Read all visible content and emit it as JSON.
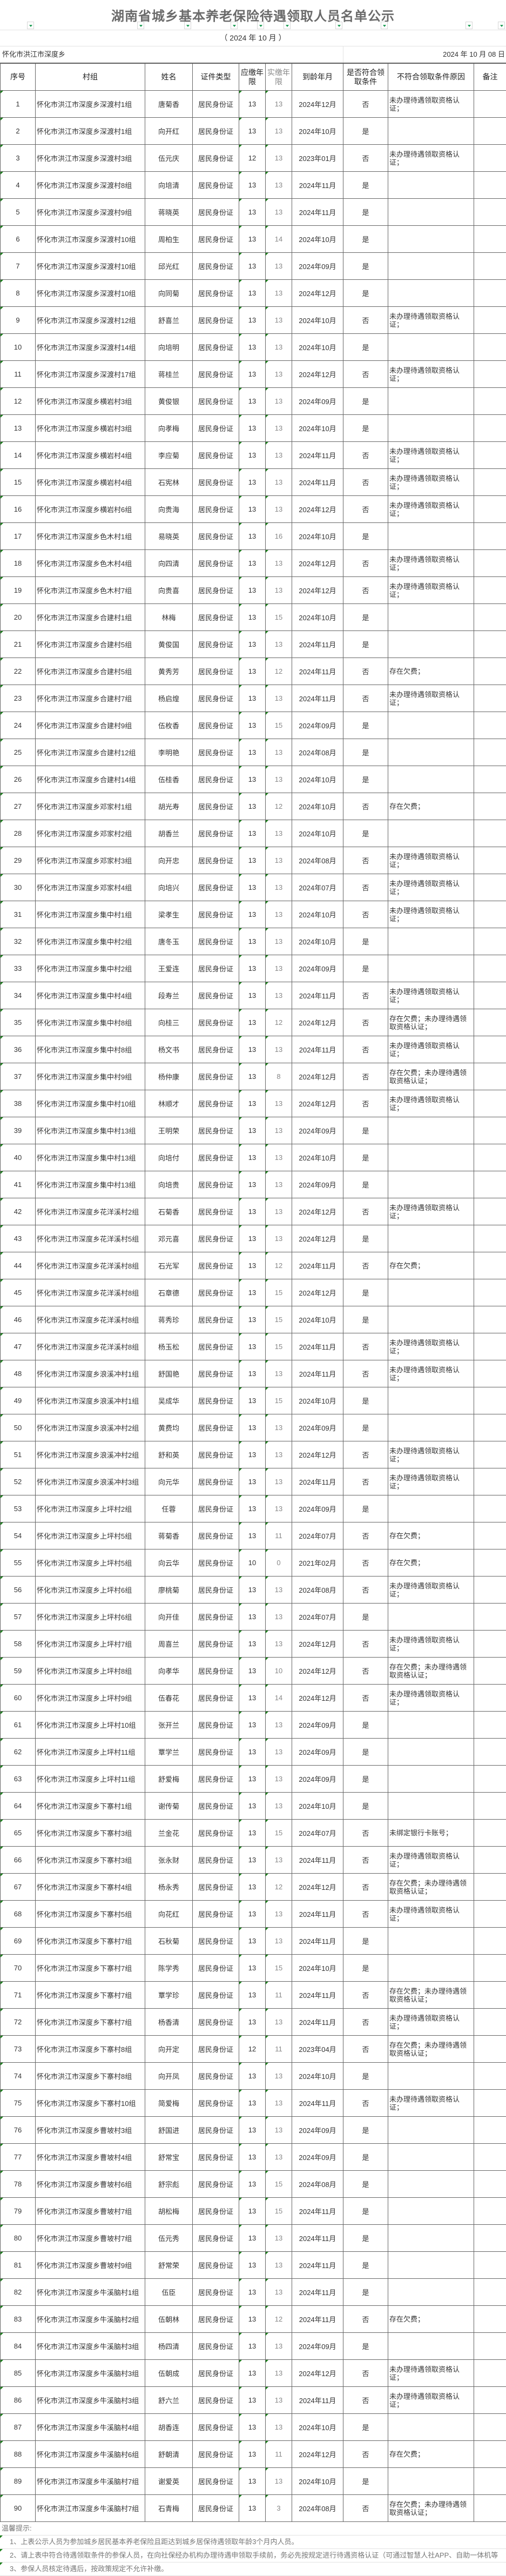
{
  "title": "湖南省城乡基本养老保险待遇领取人员名单公示",
  "period": "（ 2024 年 10 月 ）",
  "region": "怀化市洪江市深度乡",
  "date": "2024 年 10 月 08 日",
  "colors": {
    "filter_arrow": "#1f9d55",
    "grid": "#666666",
    "title": "#6a6a6a"
  },
  "columns": [
    "序号",
    "村组",
    "姓名",
    "证件类型",
    "应缴年限",
    "实缴年限",
    "到龄年月",
    "是否符合领取条件",
    "不符合领取条件原因",
    "备注"
  ],
  "rows": [
    [
      "1",
      "怀化市洪江市深度乡深渡村1组",
      "唐菊香",
      "居民身份证",
      "13",
      "13",
      "2024年12月",
      "否",
      "未办理待遇领取资格认证；",
      ""
    ],
    [
      "2",
      "怀化市洪江市深度乡深渡村1组",
      "向开红",
      "居民身份证",
      "13",
      "13",
      "2024年10月",
      "是",
      "",
      ""
    ],
    [
      "3",
      "怀化市洪江市深度乡深渡村3组",
      "伍元庆",
      "居民身份证",
      "12",
      "13",
      "2023年01月",
      "否",
      "未办理待遇领取资格认证；",
      ""
    ],
    [
      "4",
      "怀化市洪江市深度乡深渡村8组",
      "向培清",
      "居民身份证",
      "13",
      "13",
      "2024年11月",
      "是",
      "",
      ""
    ],
    [
      "5",
      "怀化市洪江市深度乡深渡村9组",
      "蒋晓英",
      "居民身份证",
      "13",
      "13",
      "2024年11月",
      "是",
      "",
      ""
    ],
    [
      "6",
      "怀化市洪江市深度乡深渡村10组",
      "周柏生",
      "居民身份证",
      "13",
      "14",
      "2024年10月",
      "是",
      "",
      ""
    ],
    [
      "7",
      "怀化市洪江市深度乡深渡村10组",
      "邱光红",
      "居民身份证",
      "13",
      "13",
      "2024年09月",
      "是",
      "",
      ""
    ],
    [
      "8",
      "怀化市洪江市深度乡深渡村10组",
      "向同菊",
      "居民身份证",
      "13",
      "13",
      "2024年12月",
      "是",
      "",
      ""
    ],
    [
      "9",
      "怀化市洪江市深度乡深渡村12组",
      "舒喜兰",
      "居民身份证",
      "13",
      "13",
      "2024年10月",
      "否",
      "未办理待遇领取资格认证；",
      ""
    ],
    [
      "10",
      "怀化市洪江市深度乡深渡村14组",
      "向培明",
      "居民身份证",
      "13",
      "13",
      "2024年10月",
      "是",
      "",
      ""
    ],
    [
      "11",
      "怀化市洪江市深度乡深渡村17组",
      "蒋桂兰",
      "居民身份证",
      "13",
      "13",
      "2024年12月",
      "否",
      "未办理待遇领取资格认证；",
      ""
    ],
    [
      "12",
      "怀化市洪江市深度乡横岩村3组",
      "黄俊银",
      "居民身份证",
      "13",
      "13",
      "2024年09月",
      "是",
      "",
      ""
    ],
    [
      "13",
      "怀化市洪江市深度乡横岩村3组",
      "向孝梅",
      "居民身份证",
      "13",
      "13",
      "2024年10月",
      "是",
      "",
      ""
    ],
    [
      "14",
      "怀化市洪江市深度乡横岩村4组",
      "李应菊",
      "居民身份证",
      "13",
      "13",
      "2024年11月",
      "否",
      "未办理待遇领取资格认证；",
      ""
    ],
    [
      "15",
      "怀化市洪江市深度乡横岩村4组",
      "石宪林",
      "居民身份证",
      "13",
      "13",
      "2024年11月",
      "否",
      "未办理待遇领取资格认证；",
      ""
    ],
    [
      "16",
      "怀化市洪江市深度乡横岩村6组",
      "向贵海",
      "居民身份证",
      "13",
      "13",
      "2024年12月",
      "否",
      "未办理待遇领取资格认证；",
      ""
    ],
    [
      "17",
      "怀化市洪江市深度乡色木村1组",
      "易晓英",
      "居民身份证",
      "13",
      "16",
      "2024年10月",
      "是",
      "",
      ""
    ],
    [
      "18",
      "怀化市洪江市深度乡色木村4组",
      "向四清",
      "居民身份证",
      "13",
      "13",
      "2024年12月",
      "否",
      "未办理待遇领取资格认证；",
      ""
    ],
    [
      "19",
      "怀化市洪江市深度乡色木村7组",
      "向贵喜",
      "居民身份证",
      "13",
      "13",
      "2024年12月",
      "否",
      "未办理待遇领取资格认证；",
      ""
    ],
    [
      "20",
      "怀化市洪江市深度乡合建村1组",
      "林梅",
      "居民身份证",
      "13",
      "15",
      "2024年10月",
      "是",
      "",
      ""
    ],
    [
      "21",
      "怀化市洪江市深度乡合建村5组",
      "黄俊国",
      "居民身份证",
      "13",
      "13",
      "2024年11月",
      "是",
      "",
      ""
    ],
    [
      "22",
      "怀化市洪江市深度乡合建村5组",
      "黄秀芳",
      "居民身份证",
      "13",
      "12",
      "2024年11月",
      "否",
      "存在欠费；",
      ""
    ],
    [
      "23",
      "怀化市洪江市深度乡合建村7组",
      "杨启煌",
      "居民身份证",
      "13",
      "13",
      "2024年11月",
      "否",
      "未办理待遇领取资格认证；",
      ""
    ],
    [
      "24",
      "怀化市洪江市深度乡合建村9组",
      "伍枚香",
      "居民身份证",
      "13",
      "15",
      "2024年09月",
      "是",
      "",
      ""
    ],
    [
      "25",
      "怀化市洪江市深度乡合建村12组",
      "李明艳",
      "居民身份证",
      "13",
      "13",
      "2024年08月",
      "是",
      "",
      ""
    ],
    [
      "26",
      "怀化市洪江市深度乡合建村14组",
      "伍桂香",
      "居民身份证",
      "13",
      "13",
      "2024年10月",
      "是",
      "",
      ""
    ],
    [
      "27",
      "怀化市洪江市深度乡邓家村1组",
      "胡光寿",
      "居民身份证",
      "13",
      "12",
      "2024年10月",
      "否",
      "存在欠费；",
      ""
    ],
    [
      "28",
      "怀化市洪江市深度乡邓家村2组",
      "胡香兰",
      "居民身份证",
      "13",
      "13",
      "2024年10月",
      "是",
      "",
      ""
    ],
    [
      "29",
      "怀化市洪江市深度乡邓家村3组",
      "向开忠",
      "居民身份证",
      "13",
      "13",
      "2024年08月",
      "否",
      "未办理待遇领取资格认证；",
      ""
    ],
    [
      "30",
      "怀化市洪江市深度乡邓家村4组",
      "向培兴",
      "居民身份证",
      "13",
      "13",
      "2024年07月",
      "否",
      "未办理待遇领取资格认证；",
      ""
    ],
    [
      "31",
      "怀化市洪江市深度乡集中村1组",
      "梁孝生",
      "居民身份证",
      "13",
      "13",
      "2024年10月",
      "否",
      "未办理待遇领取资格认证；",
      ""
    ],
    [
      "32",
      "怀化市洪江市深度乡集中村2组",
      "唐冬玉",
      "居民身份证",
      "13",
      "13",
      "2024年10月",
      "是",
      "",
      ""
    ],
    [
      "33",
      "怀化市洪江市深度乡集中村2组",
      "王爱连",
      "居民身份证",
      "13",
      "13",
      "2024年09月",
      "是",
      "",
      ""
    ],
    [
      "34",
      "怀化市洪江市深度乡集中村4组",
      "段寿兰",
      "居民身份证",
      "13",
      "13",
      "2024年11月",
      "否",
      "未办理待遇领取资格认证；",
      ""
    ],
    [
      "35",
      "怀化市洪江市深度乡集中村8组",
      "向桂三",
      "居民身份证",
      "13",
      "12",
      "2024年12月",
      "否",
      "存在欠费；未办理待遇领取资格认证；",
      ""
    ],
    [
      "36",
      "怀化市洪江市深度乡集中村8组",
      "杨文书",
      "居民身份证",
      "13",
      "13",
      "2024年11月",
      "否",
      "未办理待遇领取资格认证；",
      ""
    ],
    [
      "37",
      "怀化市洪江市深度乡集中村9组",
      "杨仲康",
      "居民身份证",
      "13",
      "8",
      "2024年12月",
      "否",
      "存在欠费；未办理待遇领取资格认证；",
      ""
    ],
    [
      "38",
      "怀化市洪江市深度乡集中村10组",
      "林顺才",
      "居民身份证",
      "13",
      "13",
      "2024年12月",
      "否",
      "未办理待遇领取资格认证；",
      ""
    ],
    [
      "39",
      "怀化市洪江市深度乡集中村13组",
      "王明荣",
      "居民身份证",
      "13",
      "13",
      "2024年09月",
      "是",
      "",
      ""
    ],
    [
      "40",
      "怀化市洪江市深度乡集中村13组",
      "向培付",
      "居民身份证",
      "13",
      "13",
      "2024年10月",
      "是",
      "",
      ""
    ],
    [
      "41",
      "怀化市洪江市深度乡集中村13组",
      "向培贵",
      "居民身份证",
      "13",
      "13",
      "2024年09月",
      "是",
      "",
      ""
    ],
    [
      "42",
      "怀化市洪江市深度乡花洋溪村2组",
      "石菊香",
      "居民身份证",
      "13",
      "13",
      "2024年12月",
      "否",
      "未办理待遇领取资格认证；",
      ""
    ],
    [
      "43",
      "怀化市洪江市深度乡花洋溪村5组",
      "邓元喜",
      "居民身份证",
      "13",
      "13",
      "2024年12月",
      "是",
      "",
      ""
    ],
    [
      "44",
      "怀化市洪江市深度乡花洋溪村8组",
      "石光军",
      "居民身份证",
      "13",
      "12",
      "2024年11月",
      "否",
      "存在欠费；",
      ""
    ],
    [
      "45",
      "怀化市洪江市深度乡花洋溪村8组",
      "石章德",
      "居民身份证",
      "13",
      "15",
      "2024年12月",
      "是",
      "",
      ""
    ],
    [
      "46",
      "怀化市洪江市深度乡花洋溪村8组",
      "蒋秀珍",
      "居民身份证",
      "13",
      "15",
      "2024年10月",
      "是",
      "",
      ""
    ],
    [
      "47",
      "怀化市洪江市深度乡花洋溪村8组",
      "杨玉松",
      "居民身份证",
      "13",
      "15",
      "2024年11月",
      "否",
      "未办理待遇领取资格认证；",
      ""
    ],
    [
      "48",
      "怀化市洪江市深度乡浪溪冲村1组",
      "舒国艳",
      "居民身份证",
      "13",
      "13",
      "2024年11月",
      "否",
      "未办理待遇领取资格认证；",
      ""
    ],
    [
      "49",
      "怀化市洪江市深度乡浪溪冲村1组",
      "吴成华",
      "居民身份证",
      "13",
      "15",
      "2024年10月",
      "是",
      "",
      ""
    ],
    [
      "50",
      "怀化市洪江市深度乡浪溪冲村2组",
      "黄费均",
      "居民身份证",
      "13",
      "13",
      "2024年09月",
      "是",
      "",
      ""
    ],
    [
      "51",
      "怀化市洪江市深度乡浪溪冲村2组",
      "舒和英",
      "居民身份证",
      "13",
      "13",
      "2024年12月",
      "否",
      "未办理待遇领取资格认证；",
      ""
    ],
    [
      "52",
      "怀化市洪江市深度乡浪溪冲村3组",
      "向元华",
      "居民身份证",
      "13",
      "13",
      "2024年11月",
      "否",
      "未办理待遇领取资格认证；",
      ""
    ],
    [
      "53",
      "怀化市洪江市深度乡上坪村2组",
      "任蓉",
      "居民身份证",
      "13",
      "13",
      "2024年09月",
      "是",
      "",
      ""
    ],
    [
      "54",
      "怀化市洪江市深度乡上坪村5组",
      "蒋菊香",
      "居民身份证",
      "13",
      "11",
      "2024年07月",
      "否",
      "存在欠费；",
      ""
    ],
    [
      "55",
      "怀化市洪江市深度乡上坪村5组",
      "向云华",
      "居民身份证",
      "10",
      "0",
      "2021年02月",
      "否",
      "存在欠费；",
      ""
    ],
    [
      "56",
      "怀化市洪江市深度乡上坪村6组",
      "廖桃菊",
      "居民身份证",
      "13",
      "13",
      "2024年08月",
      "否",
      "未办理待遇领取资格认证；",
      ""
    ],
    [
      "57",
      "怀化市洪江市深度乡上坪村6组",
      "向开佳",
      "居民身份证",
      "13",
      "13",
      "2024年07月",
      "是",
      "",
      ""
    ],
    [
      "58",
      "怀化市洪江市深度乡上坪村7组",
      "周喜兰",
      "居民身份证",
      "13",
      "13",
      "2024年12月",
      "否",
      "未办理待遇领取资格认证；",
      ""
    ],
    [
      "59",
      "怀化市洪江市深度乡上坪村8组",
      "向孝华",
      "居民身份证",
      "13",
      "10",
      "2024年12月",
      "否",
      "存在欠费；未办理待遇领取资格认证；",
      ""
    ],
    [
      "60",
      "怀化市洪江市深度乡上坪村9组",
      "伍春花",
      "居民身份证",
      "13",
      "14",
      "2024年12月",
      "否",
      "未办理待遇领取资格认证；",
      ""
    ],
    [
      "61",
      "怀化市洪江市深度乡上坪村10组",
      "张开兰",
      "居民身份证",
      "13",
      "13",
      "2024年09月",
      "是",
      "",
      ""
    ],
    [
      "62",
      "怀化市洪江市深度乡上坪村11组",
      "覃学兰",
      "居民身份证",
      "13",
      "13",
      "2024年09月",
      "是",
      "",
      ""
    ],
    [
      "63",
      "怀化市洪江市深度乡上坪村11组",
      "舒爱梅",
      "居民身份证",
      "13",
      "13",
      "2024年09月",
      "是",
      "",
      ""
    ],
    [
      "64",
      "怀化市洪江市深度乡下寨村1组",
      "谢传菊",
      "居民身份证",
      "13",
      "13",
      "2024年10月",
      "是",
      "",
      ""
    ],
    [
      "65",
      "怀化市洪江市深度乡下寨村3组",
      "兰金花",
      "居民身份证",
      "13",
      "15",
      "2024年07月",
      "否",
      "未绑定银行卡账号；",
      ""
    ],
    [
      "66",
      "怀化市洪江市深度乡下寨村3组",
      "张永财",
      "居民身份证",
      "13",
      "13",
      "2024年11月",
      "否",
      "未办理待遇领取资格认证；",
      ""
    ],
    [
      "67",
      "怀化市洪江市深度乡下寨村4组",
      "杨永秀",
      "居民身份证",
      "13",
      "12",
      "2024年12月",
      "否",
      "存在欠费；未办理待遇领取资格认证；",
      ""
    ],
    [
      "68",
      "怀化市洪江市深度乡下寨村5组",
      "向花红",
      "居民身份证",
      "13",
      "13",
      "2024年11月",
      "否",
      "未办理待遇领取资格认证；",
      ""
    ],
    [
      "69",
      "怀化市洪江市深度乡下寨村7组",
      "石秋菊",
      "居民身份证",
      "13",
      "13",
      "2024年11月",
      "是",
      "",
      ""
    ],
    [
      "70",
      "怀化市洪江市深度乡下寨村7组",
      "陈学秀",
      "居民身份证",
      "13",
      "15",
      "2024年10月",
      "是",
      "",
      ""
    ],
    [
      "71",
      "怀化市洪江市深度乡下寨村7组",
      "覃学珍",
      "居民身份证",
      "13",
      "11",
      "2024年11月",
      "否",
      "存在欠费；未办理待遇领取资格认证；",
      ""
    ],
    [
      "72",
      "怀化市洪江市深度乡下寨村7组",
      "杨香清",
      "居民身份证",
      "13",
      "13",
      "2024年11月",
      "否",
      "未办理待遇领取资格认证；",
      ""
    ],
    [
      "73",
      "怀化市洪江市深度乡下寨村8组",
      "向开定",
      "居民身份证",
      "12",
      "11",
      "2023年04月",
      "否",
      "存在欠费；未办理待遇领取资格认证；",
      ""
    ],
    [
      "74",
      "怀化市洪江市深度乡下寨村8组",
      "向开凤",
      "居民身份证",
      "13",
      "13",
      "2024年10月",
      "是",
      "",
      ""
    ],
    [
      "75",
      "怀化市洪江市深度乡下寨村10组",
      "简爱梅",
      "居民身份证",
      "13",
      "13",
      "2024年11月",
      "否",
      "未办理待遇领取资格认证；",
      ""
    ],
    [
      "76",
      "怀化市洪江市深度乡曹坡村3组",
      "舒国进",
      "居民身份证",
      "13",
      "13",
      "2024年09月",
      "是",
      "",
      ""
    ],
    [
      "77",
      "怀化市洪江市深度乡曹坡村4组",
      "舒常宝",
      "居民身份证",
      "13",
      "13",
      "2024年09月",
      "是",
      "",
      ""
    ],
    [
      "78",
      "怀化市洪江市深度乡曹坡村6组",
      "舒宗彪",
      "居民身份证",
      "13",
      "15",
      "2024年08月",
      "是",
      "",
      ""
    ],
    [
      "79",
      "怀化市洪江市深度乡曹坡村7组",
      "胡松梅",
      "居民身份证",
      "13",
      "15",
      "2024年11月",
      "是",
      "",
      ""
    ],
    [
      "80",
      "怀化市洪江市深度乡曹坡村7组",
      "伍元秀",
      "居民身份证",
      "13",
      "13",
      "2024年11月",
      "是",
      "",
      ""
    ],
    [
      "81",
      "怀化市洪江市深度乡曹坡村9组",
      "舒常荣",
      "居民身份证",
      "13",
      "13",
      "2024年11月",
      "是",
      "",
      ""
    ],
    [
      "82",
      "怀化市洪江市深度乡牛溪脑村1组",
      "伍臣",
      "居民身份证",
      "13",
      "13",
      "2024年11月",
      "是",
      "",
      ""
    ],
    [
      "83",
      "怀化市洪江市深度乡牛溪脑村2组",
      "伍朝林",
      "居民身份证",
      "13",
      "12",
      "2024年11月",
      "否",
      "存在欠费；",
      ""
    ],
    [
      "84",
      "怀化市洪江市深度乡牛溪脑村3组",
      "杨四清",
      "居民身份证",
      "13",
      "13",
      "2024年09月",
      "是",
      "",
      ""
    ],
    [
      "85",
      "怀化市洪江市深度乡牛溪脑村3组",
      "伍朝成",
      "居民身份证",
      "13",
      "13",
      "2024年12月",
      "否",
      "未办理待遇领取资格认证；",
      ""
    ],
    [
      "86",
      "怀化市洪江市深度乡牛溪脑村3组",
      "舒六兰",
      "居民身份证",
      "13",
      "13",
      "2024年11月",
      "否",
      "未办理待遇领取资格认证；",
      ""
    ],
    [
      "87",
      "怀化市洪江市深度乡牛溪脑村4组",
      "胡香连",
      "居民身份证",
      "13",
      "13",
      "2024年10月",
      "是",
      "",
      ""
    ],
    [
      "88",
      "怀化市洪江市深度乡牛溪脑村6组",
      "舒朝清",
      "居民身份证",
      "13",
      "11",
      "2024年12月",
      "否",
      "存在欠费；",
      ""
    ],
    [
      "89",
      "怀化市洪江市深度乡牛溪脑村7组",
      "谢爱英",
      "居民身份证",
      "13",
      "13",
      "2024年10月",
      "是",
      "",
      ""
    ],
    [
      "90",
      "怀化市洪江市深度乡牛溪脑村7组",
      "石青梅",
      "居民身份证",
      "13",
      "3",
      "2024年08月",
      "否",
      "存在欠费；未办理待遇领取资格认证；",
      ""
    ]
  ],
  "notes": {
    "heading": "温馨提示:",
    "items": [
      "1、上表公示人员为参加城乡居民基本养老保险且距达到城乡居保待遇领取年龄3个月内人员。",
      "2、请上表中符合待遇领取条件的参保人员，在向社保经办机构办理待遇申领取手续前，务必先按规定进行待遇资格认证（可通过智慧人社APP、自助一体机等",
      "3、参保人员核定待遇后，按政策规定不允许补缴。"
    ]
  }
}
